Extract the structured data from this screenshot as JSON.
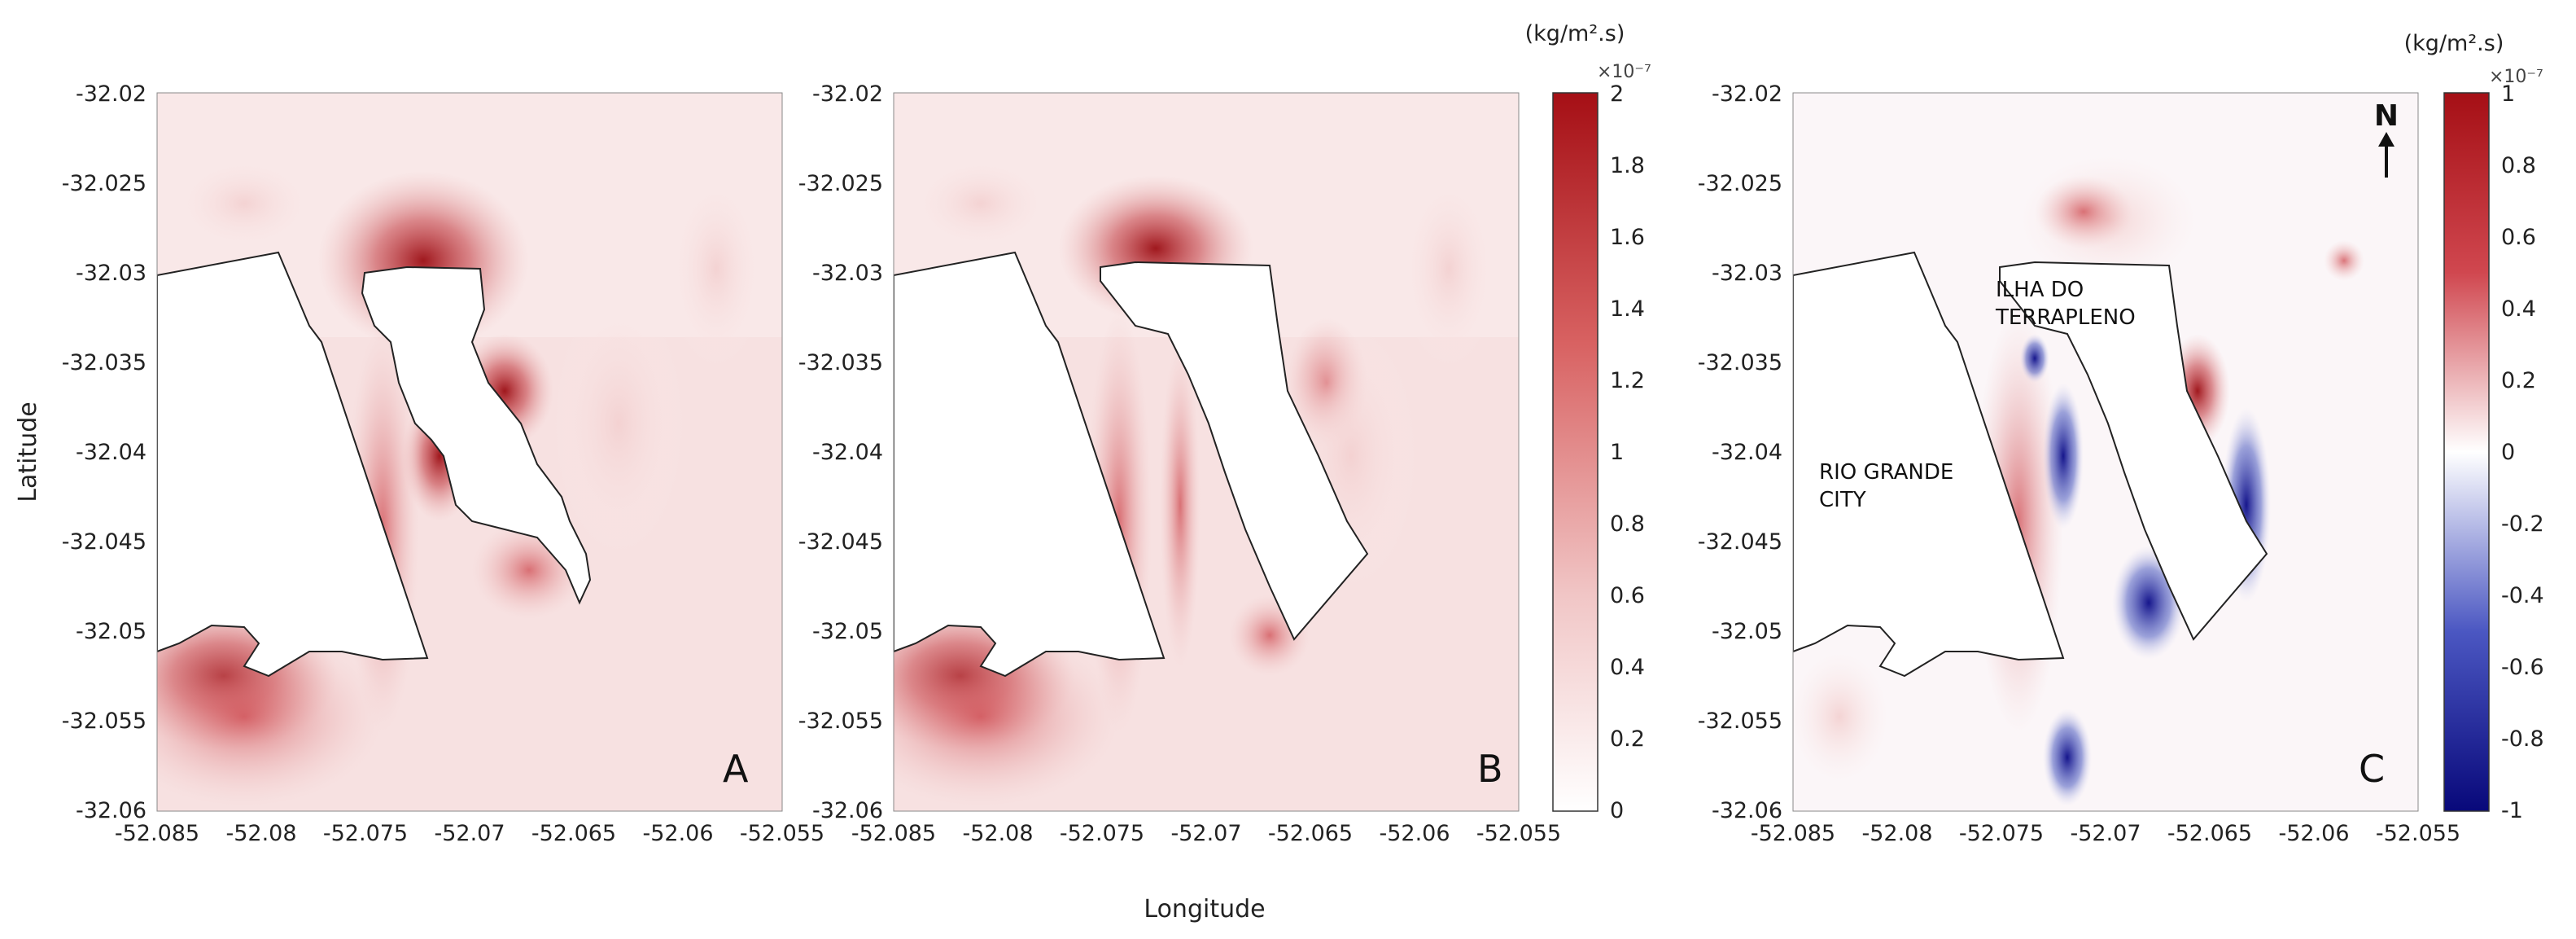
{
  "chart_data": [
    {
      "type": "heatmap",
      "panel_label": "A",
      "xlim": [
        -52.085,
        -52.055
      ],
      "ylim": [
        -32.06,
        -32.02
      ],
      "x_ticks": [
        "-52.085",
        "-52.08",
        "-52.075",
        "-52.07",
        "-52.065",
        "-52.06",
        "-52.055"
      ],
      "y_ticks": [
        "-32.02",
        "-32.025",
        "-32.03",
        "-32.035",
        "-32.04",
        "-32.045",
        "-32.05",
        "-32.055",
        "-32.06"
      ],
      "colorbar": "shared-positive",
      "max_value_x1e-7": 2
    },
    {
      "type": "heatmap",
      "panel_label": "B",
      "xlim": [
        -52.085,
        -52.055
      ],
      "ylim": [
        -32.06,
        -32.02
      ],
      "x_ticks": [
        "-52.085",
        "-52.08",
        "-52.075",
        "-52.07",
        "-52.065",
        "-52.06",
        "-52.055"
      ],
      "y_ticks": [
        "-32.02",
        "-32.025",
        "-32.03",
        "-32.035",
        "-32.04",
        "-32.045",
        "-32.05",
        "-32.055",
        "-32.06"
      ],
      "colorbar": "shared-positive",
      "max_value_x1e-7": 2
    },
    {
      "type": "heatmap",
      "panel_label": "C",
      "xlim": [
        -52.085,
        -52.055
      ],
      "ylim": [
        -32.06,
        -32.02
      ],
      "x_ticks": [
        "-52.085",
        "-52.08",
        "-52.075",
        "-52.07",
        "-52.065",
        "-52.06",
        "-52.055"
      ],
      "y_ticks": [
        "-32.02",
        "-32.025",
        "-32.03",
        "-32.035",
        "-32.04",
        "-32.045",
        "-32.05",
        "-32.055",
        "-32.06"
      ],
      "colorbar": "diverging",
      "range_x1e-7": [
        -1,
        1
      ],
      "annotations": [
        "ILHA DO",
        "TERRAPLENO",
        "RIO GRANDE",
        "CITY",
        "N"
      ]
    }
  ],
  "axes": {
    "xlabel": "Longitude",
    "ylabel": "Latitude",
    "x_ticks": [
      "-52.085",
      "-52.08",
      "-52.075",
      "-52.07",
      "-52.065",
      "-52.06",
      "-52.055"
    ],
    "y_ticks": [
      "-32.02",
      "-32.025",
      "-32.03",
      "-32.035",
      "-32.04",
      "-32.045",
      "-32.05",
      "-32.055",
      "-32.06"
    ]
  },
  "colorbar_pos": {
    "unit": "(kg/m².s)",
    "exponent": "×10⁻⁷",
    "ticks": [
      "2",
      "1.8",
      "1.6",
      "1.4",
      "1.2",
      "1",
      "0.8",
      "0.6",
      "0.4",
      "0.2",
      "0"
    ],
    "colors": [
      "#ffffff",
      "#f1c6c6",
      "#d86262",
      "#a50f15"
    ]
  },
  "colorbar_div": {
    "unit": "(kg/m².s)",
    "exponent": "×10⁻⁷",
    "ticks": [
      "1",
      "0.8",
      "0.6",
      "0.4",
      "0.2",
      "0",
      "-0.2",
      "-0.4",
      "-0.6",
      "-0.8",
      "-1"
    ],
    "colors": [
      "#08087a",
      "#4b57c2",
      "#ffffff",
      "#d0474f",
      "#a50f15"
    ]
  },
  "panels": {
    "a_label": "A",
    "b_label": "B",
    "c_label": "C",
    "c_island_line1": "ILHA DO",
    "c_island_line2": "TERRAPLENO",
    "c_city_line1": "RIO GRANDE",
    "c_city_line2": "CITY",
    "north": "N"
  }
}
